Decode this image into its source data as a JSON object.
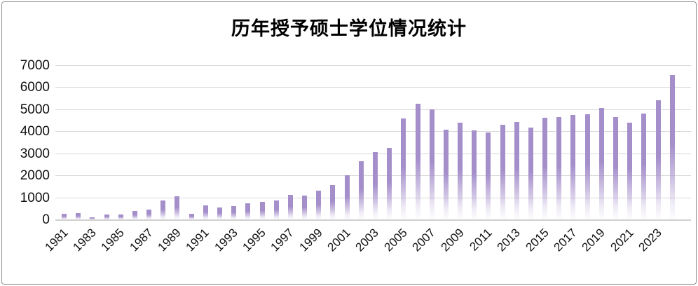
{
  "page": {
    "background_color": "#ffffff",
    "frame_border_color": "#8f8f8f"
  },
  "chart_data": {
    "type": "bar",
    "title": "历年授予硕士学位情况统计",
    "categories": [
      1981,
      1982,
      1983,
      1984,
      1985,
      1986,
      1987,
      1988,
      1989,
      1990,
      1991,
      1992,
      1993,
      1994,
      1995,
      1996,
      1997,
      1998,
      1999,
      2000,
      2001,
      2002,
      2003,
      2004,
      2005,
      2006,
      2007,
      2008,
      2009,
      2010,
      2011,
      2012,
      2013,
      2014,
      2015,
      2016,
      2017,
      2018,
      2019,
      2020,
      2021,
      2022,
      2023,
      2024
    ],
    "values": [
      260,
      300,
      110,
      215,
      235,
      385,
      440,
      870,
      1050,
      250,
      650,
      550,
      620,
      720,
      790,
      850,
      1100,
      1080,
      1320,
      1560,
      2010,
      2650,
      3070,
      3260,
      4580,
      5250,
      4980,
      4080,
      4400,
      4030,
      3940,
      4290,
      4430,
      4160,
      4600,
      4640,
      4750,
      4780,
      5070,
      4650,
      4380,
      4800,
      5410,
      6550
    ],
    "x_tick_labels": [
      "1981",
      "1983",
      "1985",
      "1987",
      "1989",
      "1991",
      "1993",
      "1995",
      "1997",
      "1999",
      "2001",
      "2003",
      "2005",
      "2007",
      "2009",
      "2011",
      "2013",
      "2015",
      "2017",
      "2019",
      "2021",
      "2023"
    ],
    "x_tick_every": 2,
    "y_ticks": [
      0,
      1000,
      2000,
      3000,
      4000,
      5000,
      6000,
      7000
    ],
    "ylim": [
      0,
      7000
    ],
    "xlabel": "",
    "ylabel": "",
    "grid": true,
    "legend": "none",
    "bar_color": "#a58fcb",
    "bar_gradient_fade_to": "#ffffff",
    "gridline_color": "#d9d9d9",
    "x_label_rotation_deg": -45
  }
}
